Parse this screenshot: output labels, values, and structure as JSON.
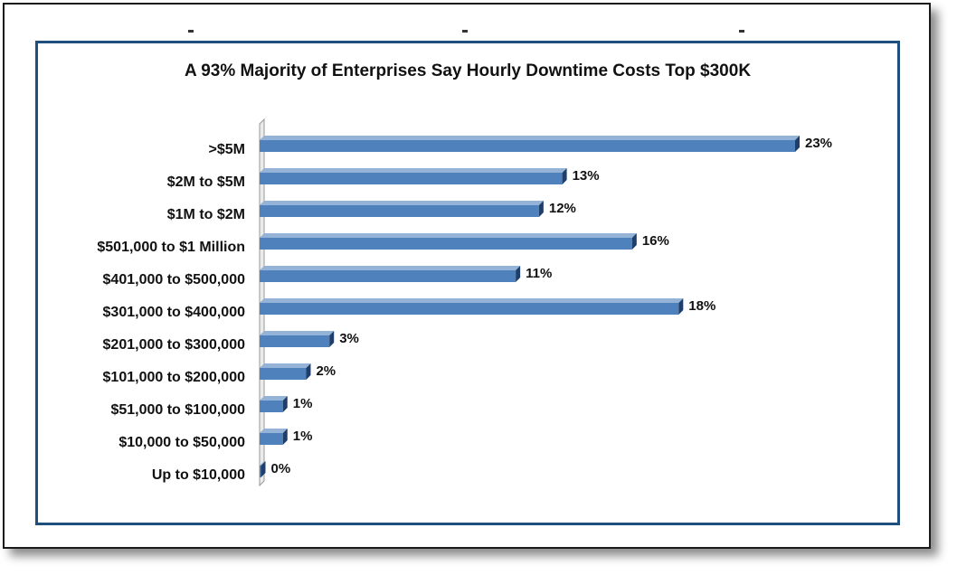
{
  "chart_data": {
    "type": "bar",
    "orientation": "horizontal",
    "title": "A 93% Majority of Enterprises Say Hourly Downtime Costs Top $300K",
    "xlabel": "",
    "ylabel": "",
    "categories": [
      ">$5M",
      "$2M to $5M",
      "$1M to $2M",
      "$501,000 to $1 Million",
      "$401,000 to $500,000",
      "$301,000 to $400,000",
      "$201,000 to $300,000",
      "$101,000 to $200,000",
      "$51,000 to $100,000",
      "$10,000 to $50,000",
      "Up to $10,000"
    ],
    "values": [
      23,
      13,
      12,
      16,
      11,
      18,
      3,
      2,
      1,
      1,
      0
    ],
    "value_labels": [
      "23%",
      "13%",
      "12%",
      "16%",
      "11%",
      "18%",
      "3%",
      "2%",
      "1%",
      "1%",
      "0%"
    ],
    "xlim": [
      0,
      23
    ],
    "grid": false,
    "legend": "none",
    "colors": {
      "bar_front": "#4f81bd",
      "bar_top": "#95b3d7",
      "bar_side": "#1f3f6a",
      "border": "#1f4f7f"
    }
  }
}
